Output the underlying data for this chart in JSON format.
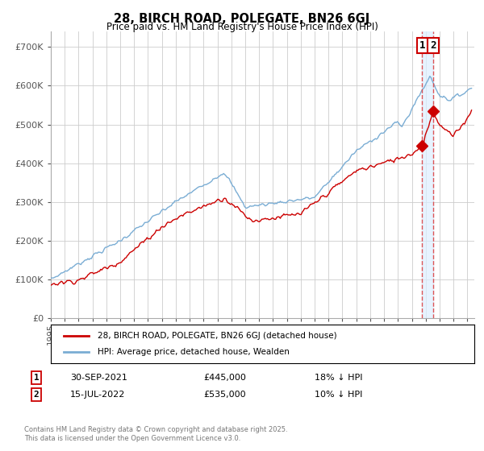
{
  "title": "28, BIRCH ROAD, POLEGATE, BN26 6GJ",
  "subtitle": "Price paid vs. HM Land Registry's House Price Index (HPI)",
  "legend_label_red": "28, BIRCH ROAD, POLEGATE, BN26 6GJ (detached house)",
  "legend_label_blue": "HPI: Average price, detached house, Wealden",
  "ylabel_ticks": [
    "£0",
    "£100K",
    "£200K",
    "£300K",
    "£400K",
    "£500K",
    "£600K",
    "£700K"
  ],
  "ytick_values": [
    0,
    100000,
    200000,
    300000,
    400000,
    500000,
    600000,
    700000
  ],
  "ylim": [
    0,
    740000
  ],
  "xlim_start": 1995.0,
  "xlim_end": 2025.5,
  "sale1_x": 2021.75,
  "sale1_y": 445000,
  "sale1_label": "1",
  "sale1_date": "30-SEP-2021",
  "sale1_price": "£445,000",
  "sale1_hpi": "18% ↓ HPI",
  "sale2_x": 2022.54,
  "sale2_y": 535000,
  "sale2_label": "2",
  "sale2_date": "15-JUL-2022",
  "sale2_price": "£535,000",
  "sale2_hpi": "10% ↓ HPI",
  "note": "Contains HM Land Registry data © Crown copyright and database right 2025.\nThis data is licensed under the Open Government Licence v3.0.",
  "red_color": "#cc0000",
  "blue_color": "#7aadd4",
  "vline_color": "#dd4444",
  "shade_color": "#ddeeff",
  "grid_color": "#cccccc",
  "bg_color": "#ffffff"
}
